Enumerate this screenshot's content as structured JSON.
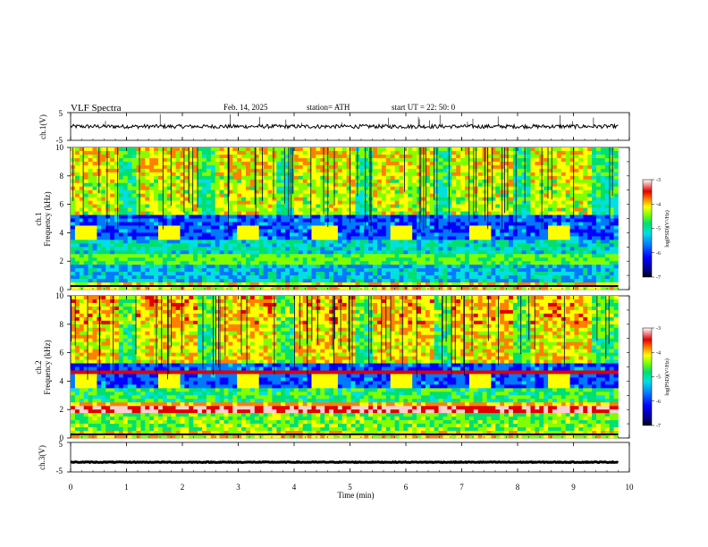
{
  "header": {
    "title": "VLF  Spectra",
    "date": "Feb. 14, 2025",
    "station": "station= ATH",
    "start": "start  UT  =   22: 50: 0"
  },
  "chart_data": [
    {
      "type": "line",
      "panel": "ch1-waveform",
      "ylabel": "ch.1(V)",
      "ylim": [
        -5,
        5
      ],
      "yticks": [
        "5",
        "-5"
      ],
      "xlim": [
        0,
        10
      ],
      "approx_level": 0,
      "color": "#000000"
    },
    {
      "type": "heatmap",
      "panel": "ch1-spectrogram",
      "channel_label": "ch.1",
      "ylabel": "Frequency  (kHz)",
      "ylim": [
        0,
        10
      ],
      "yticks": [
        "0",
        "2",
        "4",
        "6",
        "8",
        "10"
      ],
      "xlim": [
        0,
        9.8
      ],
      "colorbar": {
        "label": "log(PSD)(V²/Hz)",
        "range": [
          -7,
          -3
        ],
        "ticks": [
          "-3",
          "-4",
          "-5",
          "-6",
          "-7"
        ]
      },
      "bursts_min": [
        0.3,
        1.75,
        3.15,
        4.55,
        5.95,
        7.35,
        8.75
      ],
      "burst_freq_khz": 4.0
    },
    {
      "type": "heatmap",
      "panel": "ch2-spectrogram",
      "channel_label": "ch.2",
      "ylabel": "Frequency  (kHz)",
      "ylim": [
        0,
        10
      ],
      "yticks": [
        "0",
        "2",
        "4",
        "6",
        "8",
        "10"
      ],
      "xlim": [
        0,
        9.8
      ],
      "colorbar": {
        "label": "log(PSD)(V²/Hz)",
        "range": [
          -7,
          -3
        ],
        "ticks": [
          "-3",
          "-4",
          "-5",
          "-6",
          "-7"
        ]
      },
      "bursts_min": [
        0.3,
        1.75,
        3.15,
        4.55,
        5.95,
        7.35,
        8.75
      ],
      "burst_freq_khz": 4.0
    },
    {
      "type": "line",
      "panel": "ch3-waveform",
      "ylabel": "ch.3(V)",
      "ylim": [
        -5,
        5
      ],
      "yticks": [
        "5",
        "-5"
      ],
      "xlim": [
        0,
        10
      ],
      "approx_level": -1.7,
      "color": "#000000"
    }
  ],
  "xaxis": {
    "label": "Time  (min)",
    "ticks": [
      "0",
      "1",
      "2",
      "3",
      "4",
      "5",
      "6",
      "7",
      "8",
      "9",
      "10"
    ]
  },
  "colors": {
    "colormap": [
      "#00007a",
      "#0000ff",
      "#0078ff",
      "#00e0e0",
      "#00e070",
      "#80ff00",
      "#ffff00",
      "#ff8000",
      "#e00000",
      "#ffd0d0"
    ]
  }
}
